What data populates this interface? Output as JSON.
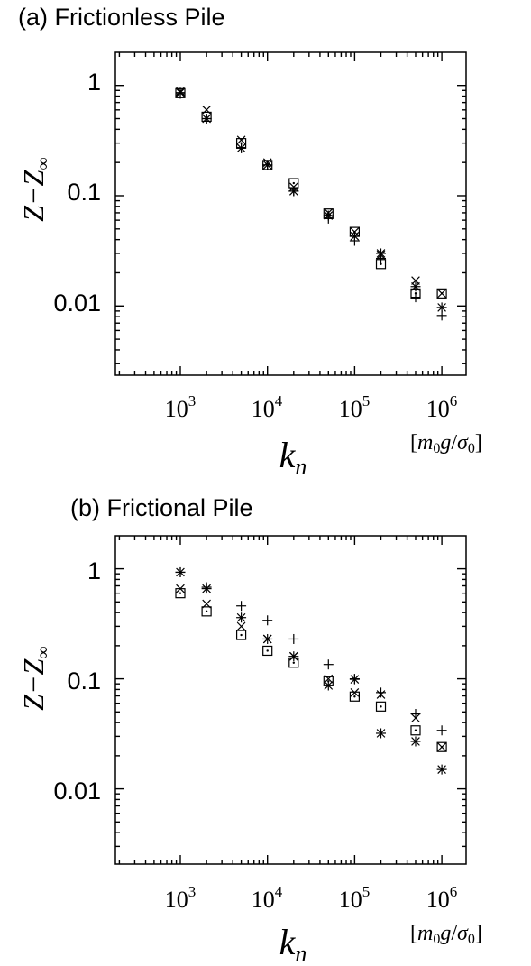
{
  "chart_data": [
    {
      "type": "scatter",
      "title": "(a) Frictionless Pile",
      "xlabel_main": "k",
      "xlabel_sub": "n",
      "x_unit": {
        "open": "[",
        "m": "m",
        "sub": "0",
        "g": "g",
        "slash": "/",
        "sigma": "σ",
        "sigma_sub": "0",
        "close": "]"
      },
      "ylabel_main": "Z−Z",
      "ylabel_sub": "∞",
      "xscale": "log",
      "yscale": "log",
      "xlim": [
        200,
        2000000
      ],
      "ylim": [
        0.002,
        2
      ],
      "x_ticks": [
        {
          "value": 1000,
          "base": "10",
          "exp": "3"
        },
        {
          "value": 10000,
          "base": "10",
          "exp": "4"
        },
        {
          "value": 100000,
          "base": "10",
          "exp": "5"
        },
        {
          "value": 1000000,
          "base": "10",
          "exp": "6"
        }
      ],
      "y_ticks": [
        {
          "value": 1,
          "label": "1"
        },
        {
          "value": 0.1,
          "label": "0.1"
        },
        {
          "value": 0.01,
          "label": "0.01"
        }
      ],
      "grid": false,
      "series": [
        {
          "marker": "plus",
          "x": [
            1000,
            2000,
            5000,
            10000,
            20000,
            50000,
            100000,
            200000,
            500000,
            1000000
          ],
          "y": [
            0.84,
            0.5,
            0.27,
            0.19,
            0.11,
            0.062,
            0.039,
            0.027,
            0.012,
            0.0082
          ]
        },
        {
          "marker": "cross",
          "x": [
            1000,
            2000,
            5000,
            10000,
            20000,
            50000,
            100000,
            200000,
            500000,
            1000000
          ],
          "y": [
            0.88,
            0.6,
            0.32,
            0.2,
            0.12,
            0.07,
            0.047,
            0.029,
            0.017,
            0.013
          ]
        },
        {
          "marker": "star",
          "x": [
            1000,
            2000,
            5000,
            10000,
            20000,
            50000,
            100000,
            200000,
            500000,
            1000000
          ],
          "y": [
            0.86,
            0.5,
            0.27,
            0.19,
            0.11,
            0.066,
            0.043,
            0.03,
            0.015,
            0.0097
          ]
        },
        {
          "marker": "square",
          "x": [
            1000,
            2000,
            5000,
            10000,
            20000,
            50000,
            100000,
            200000,
            500000,
            1000000
          ],
          "y": [
            0.85,
            0.52,
            0.3,
            0.19,
            0.13,
            0.069,
            0.047,
            0.024,
            0.013,
            0.013
          ]
        },
        {
          "marker": "dot",
          "x": [
            1000,
            2000,
            5000,
            10000,
            20000,
            50000,
            100000,
            200000,
            500000,
            1000000
          ],
          "y": [
            0.85,
            0.52,
            0.3,
            0.19,
            0.13,
            0.069,
            0.047,
            0.024,
            0.013,
            0.013
          ]
        }
      ]
    },
    {
      "type": "scatter",
      "title": "(b) Frictional Pile",
      "xlabel_main": "k",
      "xlabel_sub": "n",
      "x_unit": {
        "open": "[",
        "m": "m",
        "sub": "0",
        "g": "g",
        "slash": "/",
        "sigma": "σ",
        "sigma_sub": "0",
        "close": "]"
      },
      "ylabel_main": "Z−Z",
      "ylabel_sub": "∞",
      "xscale": "log",
      "yscale": "log",
      "xlim": [
        200,
        2000000
      ],
      "ylim": [
        0.002,
        2
      ],
      "x_ticks": [
        {
          "value": 1000,
          "base": "10",
          "exp": "3"
        },
        {
          "value": 10000,
          "base": "10",
          "exp": "4"
        },
        {
          "value": 100000,
          "base": "10",
          "exp": "5"
        },
        {
          "value": 1000000,
          "base": "10",
          "exp": "6"
        }
      ],
      "y_ticks": [
        {
          "value": 1,
          "label": "1"
        },
        {
          "value": 0.1,
          "label": "0.1"
        },
        {
          "value": 0.01,
          "label": "0.01"
        }
      ],
      "grid": false,
      "series": [
        {
          "marker": "plus",
          "x": [
            1000,
            2000,
            5000,
            10000,
            20000,
            50000,
            100000,
            200000,
            500000,
            1000000
          ],
          "y": [
            0.93,
            0.68,
            0.46,
            0.34,
            0.23,
            0.135,
            0.1,
            0.075,
            0.048,
            0.034
          ]
        },
        {
          "marker": "cross",
          "x": [
            1000,
            2000,
            5000,
            10000,
            20000,
            50000,
            100000,
            200000,
            500000,
            1000000
          ],
          "y": [
            0.66,
            0.48,
            0.3,
            0.23,
            0.16,
            0.1,
            0.075,
            0.072,
            0.044,
            0.024
          ]
        },
        {
          "marker": "star",
          "x": [
            1000,
            2000,
            5000,
            10000,
            20000,
            50000,
            100000,
            200000,
            500000,
            1000000
          ],
          "y": [
            0.93,
            0.66,
            0.36,
            0.23,
            0.16,
            0.087,
            0.099,
            0.032,
            0.027,
            0.015
          ]
        },
        {
          "marker": "square",
          "x": [
            1000,
            2000,
            5000,
            10000,
            20000,
            50000,
            100000,
            200000,
            500000,
            1000000
          ],
          "y": [
            0.6,
            0.41,
            0.25,
            0.18,
            0.14,
            0.095,
            0.069,
            0.056,
            0.034,
            0.024
          ]
        },
        {
          "marker": "dot",
          "x": [
            1000,
            2000,
            5000,
            10000,
            20000,
            50000,
            100000,
            200000,
            500000,
            1000000
          ],
          "y": [
            0.6,
            0.41,
            0.25,
            0.18,
            0.14,
            0.095,
            0.069,
            0.056,
            0.034,
            0.024
          ]
        }
      ]
    }
  ]
}
